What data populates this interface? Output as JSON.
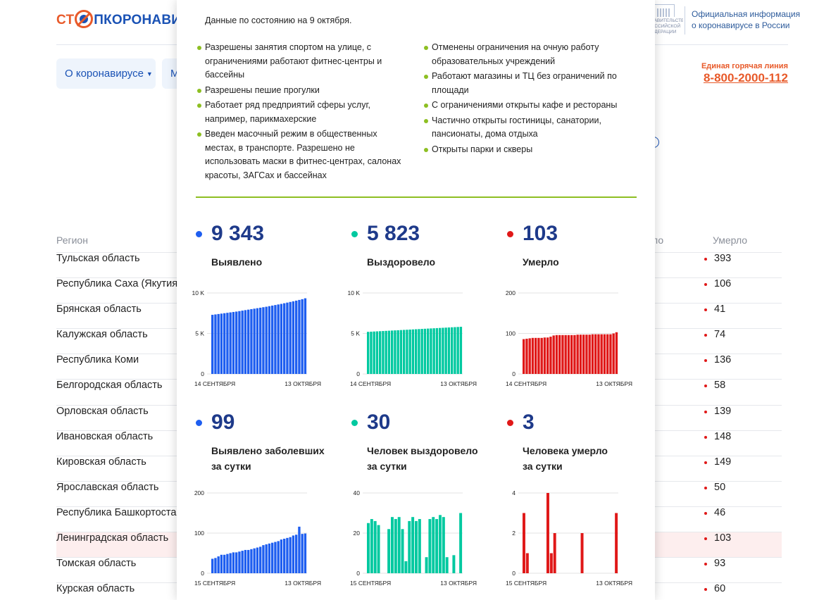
{
  "header": {
    "logo_part1": "СТ",
    "logo_part2": "ПКОРОНАВИ",
    "gov_text": "ПРАВИТЕЛЬСТВО РОССИЙСКОЙ ФЕДЕРАЦИИ",
    "official_line1": "Официальная информация",
    "official_line2": "о коронавирусе в России",
    "hotline_label": "Единая горячая линия",
    "hotline_number": "8-800-2000-112"
  },
  "nav": {
    "item1": "О коронавирусе",
    "item2": "М"
  },
  "table": {
    "col_region": "Регион",
    "col_recovered_partial": "ло",
    "col_died": "Умерло",
    "rows": [
      {
        "region": "Тульская область",
        "died": "393"
      },
      {
        "region": "Республика Саха (Якутия)",
        "died": "106"
      },
      {
        "region": "Брянская область",
        "died": "41"
      },
      {
        "region": "Калужская область",
        "died": "74"
      },
      {
        "region": "Республика Коми",
        "died": "136"
      },
      {
        "region": "Белгородская область",
        "died": "58"
      },
      {
        "region": "Орловская область",
        "died": "139"
      },
      {
        "region": "Ивановская область",
        "died": "148"
      },
      {
        "region": "Кировская область",
        "died": "149"
      },
      {
        "region": "Ярославская область",
        "died": "50"
      },
      {
        "region": "Республика Башкортостан",
        "died": "46"
      },
      {
        "region": "Ленинградская область",
        "died": "103"
      },
      {
        "region": "Томская область",
        "died": "93"
      },
      {
        "region": "Курская область",
        "died": "60"
      }
    ]
  },
  "popup": {
    "date_line": "Данные по состоянию на 9 октября.",
    "left_list": [
      "Разрешены занятия спортом на улице, с ограничениями работают фитнес-центры и бассейны",
      "Разрешены пешие прогулки",
      "Работает ряд предприятий сферы услуг, например, парикмахерские",
      "Введен масочный режим в общественных местах, в транспорте. Разрешено не использовать маски в фитнес-центрах, салонах красоты, ЗАГСах и бассейнах"
    ],
    "right_list": [
      "Отменены ограничения на очную работу образовательных учреждений",
      "Работают магазины и ТЦ без ограничений по площади",
      "С ограничениями открыты кафе и рестораны",
      "Частично открыты гостиницы, санатории, пансионаты, дома отдыха",
      "Открыты парки и скверы"
    ]
  },
  "colors": {
    "blue": "#1e5ef0",
    "teal": "#00c9a0",
    "red": "#e01818",
    "accent_orange": "#e85a2a",
    "green_divider": "#8dbf22"
  },
  "chart_data": [
    {
      "type": "bar",
      "num": "9 343",
      "label1": "Выявлено",
      "label2": "",
      "color": "#1e5ef0",
      "ylim": [
        0,
        10000
      ],
      "yticks": [
        {
          "v": 0,
          "t": "0"
        },
        {
          "v": 5000,
          "t": "5 K"
        },
        {
          "v": 10000,
          "t": "10 K"
        }
      ],
      "x_start": "14 СЕНТЯБРЯ",
      "x_end": "13 ОКТЯБРЯ",
      "values": [
        7300,
        7350,
        7400,
        7450,
        7500,
        7550,
        7600,
        7650,
        7700,
        7760,
        7820,
        7880,
        7940,
        8000,
        8060,
        8120,
        8180,
        8240,
        8300,
        8370,
        8440,
        8510,
        8580,
        8650,
        8730,
        8810,
        8890,
        8970,
        9050,
        9140,
        9230,
        9343
      ]
    },
    {
      "type": "bar",
      "num": "5 823",
      "label1": "Выздоровело",
      "label2": "",
      "color": "#00c9a0",
      "ylim": [
        0,
        10000
      ],
      "yticks": [
        {
          "v": 0,
          "t": "0"
        },
        {
          "v": 5000,
          "t": "5 K"
        },
        {
          "v": 10000,
          "t": "10 K"
        }
      ],
      "x_start": "14 СЕНТЯБРЯ",
      "x_end": "13 ОКТЯБРЯ",
      "values": [
        5200,
        5220,
        5240,
        5260,
        5280,
        5300,
        5320,
        5340,
        5360,
        5380,
        5400,
        5420,
        5440,
        5460,
        5480,
        5500,
        5520,
        5540,
        5560,
        5580,
        5600,
        5620,
        5640,
        5660,
        5680,
        5700,
        5720,
        5740,
        5760,
        5780,
        5800,
        5823
      ]
    },
    {
      "type": "bar",
      "num": "103",
      "label1": "Умерло",
      "label2": "",
      "color": "#e01818",
      "ylim": [
        0,
        200
      ],
      "yticks": [
        {
          "v": 0,
          "t": "0"
        },
        {
          "v": 100,
          "t": "100"
        },
        {
          "v": 200,
          "t": "200"
        }
      ],
      "x_start": "14 СЕНТЯБРЯ",
      "x_end": "13 ОКТЯБРЯ",
      "values": [
        86,
        87,
        88,
        89,
        89,
        89,
        89,
        90,
        90,
        92,
        95,
        96,
        96,
        96,
        96,
        96,
        96,
        96,
        97,
        97,
        97,
        97,
        97,
        98,
        98,
        98,
        98,
        98,
        98,
        98,
        100,
        103
      ]
    },
    {
      "type": "bar",
      "num": "99",
      "label1": "Выявлено заболевших",
      "label2": "за сутки",
      "color": "#1e5ef0",
      "ylim": [
        0,
        200
      ],
      "yticks": [
        {
          "v": 0,
          "t": "0"
        },
        {
          "v": 100,
          "t": "100"
        },
        {
          "v": 200,
          "t": "200"
        }
      ],
      "x_start": "15 СЕНТЯБРЯ",
      "x_end": "13 ОКТЯБРЯ",
      "values": [
        36,
        38,
        42,
        46,
        46,
        48,
        50,
        52,
        52,
        54,
        56,
        58,
        58,
        60,
        62,
        64,
        66,
        70,
        72,
        74,
        76,
        78,
        80,
        84,
        86,
        88,
        90,
        94,
        96,
        116,
        98,
        99
      ]
    },
    {
      "type": "bar",
      "num": "30",
      "label1": "Человек выздоровело",
      "label2": "за сутки",
      "color": "#00c9a0",
      "ylim": [
        0,
        40
      ],
      "yticks": [
        {
          "v": 0,
          "t": "0"
        },
        {
          "v": 20,
          "t": "20"
        },
        {
          "v": 40,
          "t": "40"
        }
      ],
      "x_start": "15 СЕНТЯБРЯ",
      "x_end": "13 ОКТЯБРЯ",
      "values": [
        25,
        27,
        26,
        24,
        0,
        0,
        22,
        28,
        27,
        28,
        22,
        6,
        26,
        28,
        26,
        27,
        0,
        8,
        27,
        28,
        27,
        29,
        28,
        8,
        0,
        9,
        0,
        30
      ]
    },
    {
      "type": "bar",
      "num": "3",
      "label1": "Человека умерло",
      "label2": "за сутки",
      "color": "#e01818",
      "ylim": [
        0,
        4
      ],
      "yticks": [
        {
          "v": 0,
          "t": "0"
        },
        {
          "v": 2,
          "t": "2"
        },
        {
          "v": 4,
          "t": "4"
        }
      ],
      "x_start": "15 СЕНТЯБРЯ",
      "x_end": "13 ОКТЯБРЯ",
      "values": [
        3,
        1,
        0,
        0,
        0,
        0,
        0,
        4,
        1,
        2,
        0,
        0,
        0,
        0,
        0,
        0,
        0,
        2,
        0,
        0,
        0,
        0,
        0,
        0,
        0,
        0,
        0,
        3
      ]
    }
  ]
}
